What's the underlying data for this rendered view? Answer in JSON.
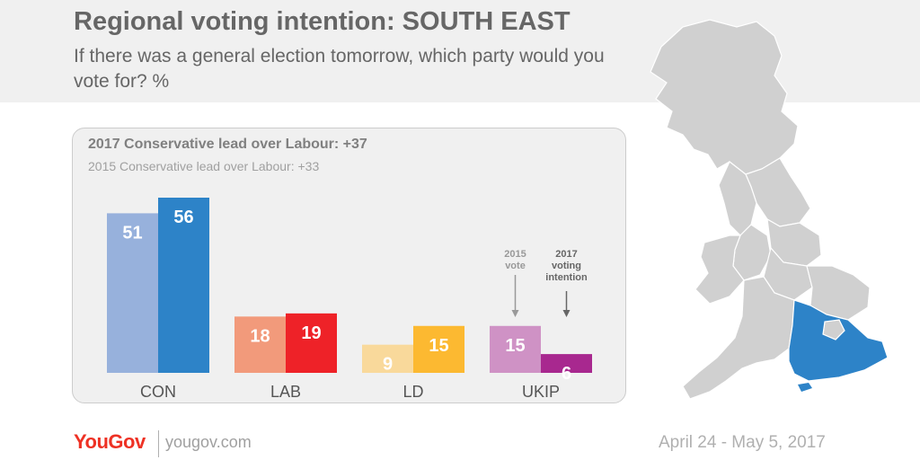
{
  "header": {
    "title": "Regional voting intention: SOUTH EAST",
    "subtitle": "If there was a general election tomorrow, which party would you vote for? %"
  },
  "panel": {
    "lead_2017": "2017 Conservative lead over Labour: +37",
    "lead_2015": "2015 Conservative lead over Labour: +33"
  },
  "annotations": {
    "vote_2015": [
      "2015",
      "vote"
    ],
    "intention_2017": [
      "2017",
      "voting",
      "intention"
    ]
  },
  "chart_data": {
    "type": "bar",
    "categories": [
      "CON",
      "LAB",
      "LD",
      "UKIP"
    ],
    "series": [
      {
        "values": [
          51,
          18,
          9,
          15
        ],
        "colors": [
          "#97b1dc",
          "#f29a7b",
          "#f9d99b",
          "#cf92c5"
        ]
      },
      {
        "values": [
          56,
          19,
          15,
          6
        ],
        "colors": [
          "#2d83c8",
          "#ee2228",
          "#fcb931",
          "#a8288f"
        ]
      }
    ],
    "ylim": [
      0,
      56
    ]
  },
  "map": {
    "highlight_region": "South East",
    "highlight_color": "#2d83c8",
    "base_color": "#d0d0d0"
  },
  "footer": {
    "logo": "YouGov",
    "url": "yougov.com",
    "date": "April 24 - May 5, 2017"
  }
}
